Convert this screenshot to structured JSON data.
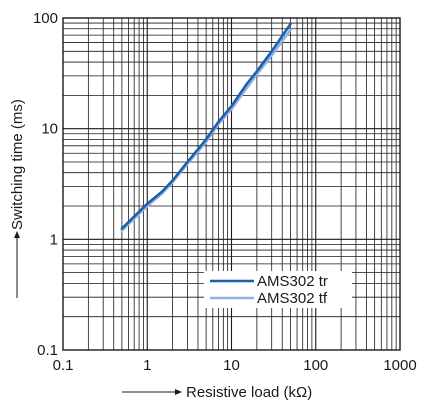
{
  "chart_data": {
    "type": "line",
    "xlabel": "Resistive load (kΩ)",
    "ylabel": "Switching time (ms)",
    "x_scale": "log",
    "y_scale": "log",
    "xlim": [
      0.1,
      1000
    ],
    "ylim": [
      0.1,
      100
    ],
    "x_tick_labels": [
      "0.1",
      "1",
      "10",
      "100",
      "1000"
    ],
    "y_tick_labels": [
      "0.1",
      "1",
      "10",
      "100"
    ],
    "grid": true,
    "legend_position": "bottom-right",
    "series": [
      {
        "name": "AMS302 tr",
        "color": "#1f5faa",
        "x": [
          0.5,
          1,
          1.5,
          2,
          3,
          5,
          7,
          10,
          15,
          20,
          30,
          50
        ],
        "y": [
          1.25,
          2.1,
          2.7,
          3.4,
          5.0,
          8.0,
          11.5,
          16.0,
          25.0,
          33.0,
          50.0,
          88.0
        ]
      },
      {
        "name": "AMS302 tf",
        "color": "#8fb3e6",
        "x": [
          0.5,
          1,
          1.5,
          2,
          3,
          5,
          7,
          10,
          15,
          20,
          30,
          50
        ],
        "y": [
          1.2,
          2.0,
          2.6,
          3.3,
          4.8,
          7.6,
          11.0,
          15.0,
          23.0,
          31.0,
          46.0,
          78.0
        ]
      }
    ]
  }
}
